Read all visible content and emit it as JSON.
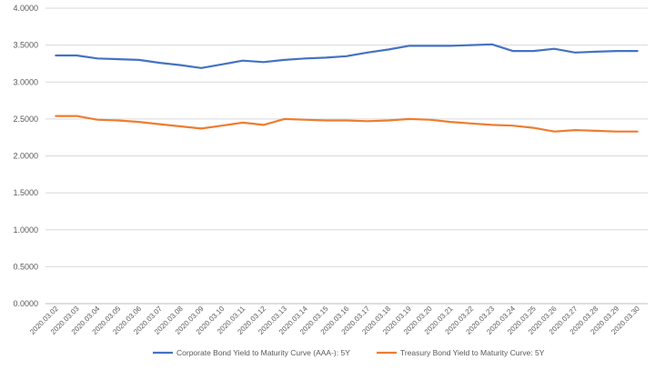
{
  "chart_data": {
    "type": "line",
    "title": "",
    "xlabel": "",
    "ylabel": "",
    "ylim": [
      0,
      4
    ],
    "y_ticks": [
      "0.0000",
      "0.5000",
      "1.0000",
      "1.5000",
      "2.0000",
      "2.5000",
      "3.0000",
      "3.5000",
      "4.0000"
    ],
    "grid": "horizontal",
    "legend_position": "bottom",
    "categories": [
      "2020.03.02",
      "2020.03.03",
      "2020.03.04",
      "2020.03.05",
      "2020.03.06",
      "2020.03.07",
      "2020.03.08",
      "2020.03.09",
      "2020.03.10",
      "2020.03.11",
      "2020.03.12",
      "2020.03.13",
      "2020.03.14",
      "2020.03.15",
      "2020.03.16",
      "2020.03.17",
      "2020.03.18",
      "2020.03.19",
      "2020.03.20",
      "2020.03.21",
      "2020.03.22",
      "2020.03.23",
      "2020.03.24",
      "2020.03.25",
      "2020.03.26",
      "2020.03.27",
      "2020.03.28",
      "2020.03.29",
      "2020.03.30"
    ],
    "series": [
      {
        "name": "Corporate Bond Yield to Maturity Curve (AAA-): 5Y",
        "color": "#4472c4",
        "values": [
          3.36,
          3.36,
          3.32,
          3.31,
          3.3,
          3.26,
          3.23,
          3.19,
          3.24,
          3.29,
          3.27,
          3.3,
          3.32,
          3.33,
          3.35,
          3.4,
          3.44,
          3.49,
          3.49,
          3.49,
          3.5,
          3.51,
          3.42,
          3.42,
          3.45,
          3.4,
          3.41,
          3.42,
          3.42
        ]
      },
      {
        "name": "Treasury Bond Yield to Maturity Curve: 5Y",
        "color": "#ed7d31",
        "values": [
          2.54,
          2.54,
          2.49,
          2.48,
          2.46,
          2.43,
          2.4,
          2.37,
          2.41,
          2.45,
          2.42,
          2.5,
          2.49,
          2.48,
          2.48,
          2.47,
          2.48,
          2.5,
          2.49,
          2.46,
          2.44,
          2.42,
          2.41,
          2.38,
          2.33,
          2.35,
          2.34,
          2.33,
          2.33
        ]
      }
    ]
  }
}
